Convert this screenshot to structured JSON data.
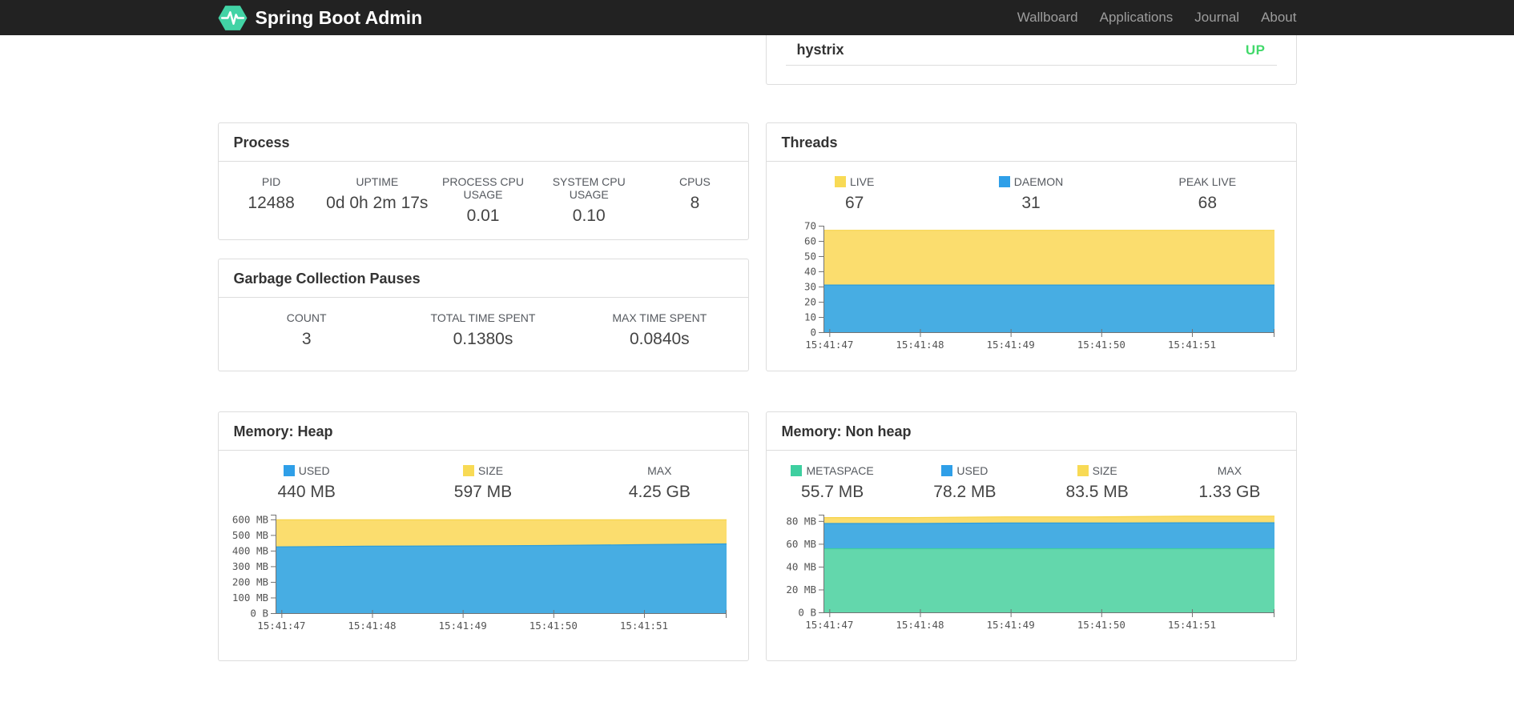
{
  "navbar": {
    "brand": "Spring Boot Admin",
    "items": [
      "Wallboard",
      "Applications",
      "Journal",
      "About"
    ]
  },
  "colors": {
    "navbar_bg": "#222222",
    "logo_green": "#42d3a5",
    "status_up": "#42d96b",
    "swatch_yellow": "#f8da55",
    "swatch_blue": "#2f9fe8",
    "swatch_green": "#3ecfa0"
  },
  "health_card": {
    "app": "hystrix",
    "status": "UP"
  },
  "cards": {
    "process": {
      "title": "Process",
      "metrics": [
        {
          "label": "PID",
          "value": "12488"
        },
        {
          "label": "UPTIME",
          "value": "0d 0h 2m 17s"
        },
        {
          "label": "PROCESS CPU USAGE",
          "value": "0.01"
        },
        {
          "label": "SYSTEM CPU USAGE",
          "value": "0.10"
        },
        {
          "label": "CPUS",
          "value": "8"
        }
      ]
    },
    "gc": {
      "title": "Garbage Collection Pauses",
      "metrics": [
        {
          "label": "COUNT",
          "value": "3"
        },
        {
          "label": "TOTAL TIME SPENT",
          "value": "0.1380s"
        },
        {
          "label": "MAX TIME SPENT",
          "value": "0.0840s"
        }
      ]
    },
    "threads": {
      "title": "Threads",
      "metrics": [
        {
          "label": "LIVE",
          "value": "67",
          "swatch": "#f8da55"
        },
        {
          "label": "DAEMON",
          "value": "31",
          "swatch": "#2f9fe8"
        },
        {
          "label": "PEAK LIVE",
          "value": "68"
        }
      ],
      "chart_data": {
        "type": "area",
        "stacked": true,
        "legend_position": "top",
        "x_ticks": [
          "15:41:47",
          "15:41:48",
          "15:41:49",
          "15:41:50",
          "15:41:51"
        ],
        "x_tick_start": 0.013,
        "x_tick_step": 0.201,
        "y_axis_max": 70,
        "y_ticks": [
          {
            "v": 0,
            "label": "0"
          },
          {
            "v": 10,
            "label": "10"
          },
          {
            "v": 20,
            "label": "20"
          },
          {
            "v": 30,
            "label": "30"
          },
          {
            "v": 40,
            "label": "40"
          },
          {
            "v": 50,
            "label": "50"
          },
          {
            "v": 60,
            "label": "60"
          },
          {
            "v": 70,
            "label": "70"
          }
        ],
        "series": [
          {
            "name": "LIVE",
            "fill": "#fbdd6e",
            "line": "#f6d44c",
            "values": [
              67,
              67,
              67,
              67,
              67,
              67
            ]
          },
          {
            "name": "DAEMON",
            "fill": "#47ade3",
            "line": "#2d9ddb",
            "values": [
              31,
              31,
              31,
              31,
              31,
              31
            ]
          }
        ]
      }
    },
    "heap": {
      "title": "Memory: Heap",
      "metrics": [
        {
          "label": "USED",
          "value": "440 MB",
          "swatch": "#2f9fe8"
        },
        {
          "label": "SIZE",
          "value": "597 MB",
          "swatch": "#f8da55"
        },
        {
          "label": "MAX",
          "value": "4.25 GB"
        }
      ],
      "chart_data": {
        "type": "area",
        "stacked": true,
        "x_ticks": [
          "15:41:47",
          "15:41:48",
          "15:41:49",
          "15:41:50",
          "15:41:51"
        ],
        "x_tick_start": 0.013,
        "x_tick_step": 0.201,
        "y_axis_max": 630,
        "y_ticks": [
          {
            "v": 0,
            "label": "0 B"
          },
          {
            "v": 100,
            "label": "100 MB"
          },
          {
            "v": 200,
            "label": "200 MB"
          },
          {
            "v": 300,
            "label": "300 MB"
          },
          {
            "v": 400,
            "label": "400 MB"
          },
          {
            "v": 500,
            "label": "500 MB"
          },
          {
            "v": 600,
            "label": "600 MB"
          }
        ],
        "series": [
          {
            "name": "SIZE",
            "fill": "#fbdd6e",
            "line": "#f6d44c",
            "values": [
              597,
              597,
              597,
              597,
              597,
              597
            ]
          },
          {
            "name": "USED",
            "fill": "#47ade3",
            "line": "#2d9ddb",
            "values": [
              424,
              428,
              430,
              433,
              438,
              443
            ]
          }
        ]
      }
    },
    "nonheap": {
      "title": "Memory: Non heap",
      "metrics": [
        {
          "label": "METASPACE",
          "value": "55.7 MB",
          "swatch": "#3ecfa0"
        },
        {
          "label": "USED",
          "value": "78.2 MB",
          "swatch": "#2f9fe8"
        },
        {
          "label": "SIZE",
          "value": "83.5 MB",
          "swatch": "#f8da55"
        },
        {
          "label": "MAX",
          "value": "1.33 GB"
        }
      ],
      "chart_data": {
        "type": "area",
        "stacked": true,
        "x_ticks": [
          "15:41:47",
          "15:41:48",
          "15:41:49",
          "15:41:50",
          "15:41:51"
        ],
        "x_tick_start": 0.013,
        "x_tick_step": 0.201,
        "y_axis_max": 85.5,
        "y_ticks": [
          {
            "v": 0,
            "label": "0 B"
          },
          {
            "v": 20,
            "label": "20 MB"
          },
          {
            "v": 40,
            "label": "40 MB"
          },
          {
            "v": 60,
            "label": "60 MB"
          },
          {
            "v": 80,
            "label": "80 MB"
          }
        ],
        "series": [
          {
            "name": "SIZE",
            "fill": "#fbdd6e",
            "line": "#f6d44c",
            "values": [
              83,
              83,
              83.6,
              83.6,
              84.2,
              84.2
            ]
          },
          {
            "name": "USED",
            "fill": "#47ade3",
            "line": "#2d9ddb",
            "values": [
              77.8,
              77.8,
              78.2,
              78.2,
              78.4,
              78.4
            ]
          },
          {
            "name": "METASPACE",
            "fill": "#63d7ac",
            "line": "#3ecfa0",
            "values": [
              55.7,
              55.7,
              55.7,
              55.7,
              55.7,
              55.7
            ]
          }
        ]
      }
    }
  }
}
